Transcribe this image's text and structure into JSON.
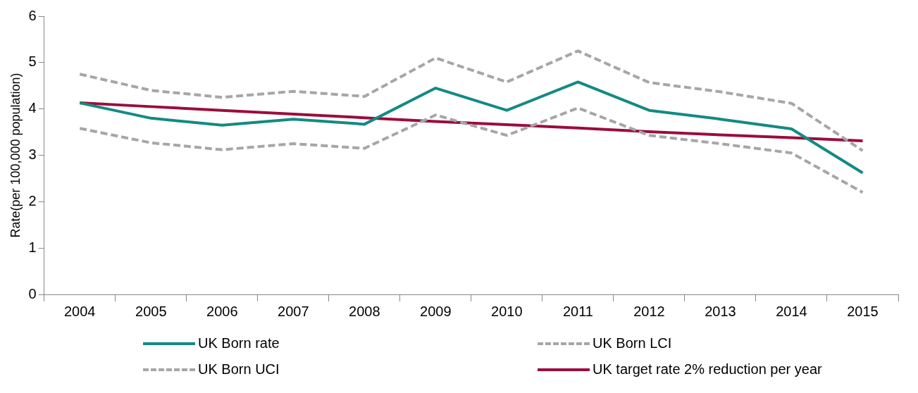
{
  "chart_data": {
    "type": "line",
    "ylabel": "Rate(per 100,000 population)",
    "categories": [
      "2004",
      "2005",
      "2006",
      "2007",
      "2008",
      "2009",
      "2010",
      "2011",
      "2012",
      "2013",
      "2014",
      "2015"
    ],
    "series": [
      {
        "name": "UK Born rate",
        "color": "#138a84",
        "line_style": "solid",
        "values": [
          4.13,
          3.8,
          3.65,
          3.78,
          3.67,
          4.45,
          3.97,
          4.58,
          3.97,
          3.78,
          3.57,
          2.62
        ]
      },
      {
        "name": "UK Born LCI",
        "color": "#a6a6a6",
        "line_style": "dashed",
        "values": [
          3.58,
          3.27,
          3.12,
          3.25,
          3.15,
          3.87,
          3.43,
          4.02,
          3.43,
          3.25,
          3.05,
          2.2
        ]
      },
      {
        "name": "UK Born UCI",
        "color": "#a6a6a6",
        "line_style": "dashed",
        "values": [
          4.75,
          4.4,
          4.25,
          4.38,
          4.27,
          5.1,
          4.58,
          5.25,
          4.57,
          4.37,
          4.12,
          3.1
        ]
      },
      {
        "name": "UK target rate 2% reduction per year",
        "color": "#9b0d3c",
        "line_style": "solid",
        "values": [
          4.13,
          4.05,
          3.97,
          3.89,
          3.81,
          3.73,
          3.66,
          3.59,
          3.51,
          3.44,
          3.38,
          3.31
        ]
      }
    ],
    "ylim": [
      0,
      6
    ],
    "yticks": [
      0,
      1,
      2,
      3,
      4,
      5,
      6
    ],
    "grid": false,
    "legend": "bottom",
    "marker": "none"
  }
}
